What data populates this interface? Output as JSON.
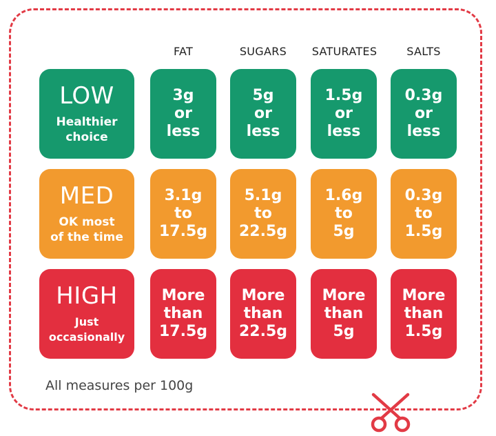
{
  "columns": [
    "FAT",
    "SUGARS",
    "SATURATES",
    "SALTS"
  ],
  "rows": [
    {
      "level": "LOW",
      "description": "Healthier choice",
      "desc_lines": [
        "Healthier",
        "choice"
      ],
      "color": "#16996d",
      "values": [
        [
          "3g",
          "or",
          "less"
        ],
        [
          "5g",
          "or",
          "less"
        ],
        [
          "1.5g",
          "or",
          "less"
        ],
        [
          "0.3g",
          "or",
          "less"
        ]
      ]
    },
    {
      "level": "MED",
      "description": "OK most of the time",
      "desc_lines": [
        "OK most",
        "of the time"
      ],
      "color": "#f29a2e",
      "values": [
        [
          "3.1g",
          "to",
          "17.5g"
        ],
        [
          "5.1g",
          "to",
          "22.5g"
        ],
        [
          "1.6g",
          "to",
          "5g"
        ],
        [
          "0.3g",
          "to",
          "1.5g"
        ]
      ]
    },
    {
      "level": "HIGH",
      "description": "Just occasionally",
      "desc_lines": [
        "Just",
        "occasionally"
      ],
      "color": "#e32f3f",
      "values": [
        [
          "More",
          "than",
          "17.5g"
        ],
        [
          "More",
          "than",
          "22.5g"
        ],
        [
          "More",
          "than",
          "5g"
        ],
        [
          "More",
          "than",
          "1.5g"
        ]
      ]
    }
  ],
  "footnote": "All measures per 100g",
  "icons": {
    "cut_line": "scissors-icon"
  },
  "colors": {
    "border": "#e23a45",
    "low": "#16996d",
    "med": "#f29a2e",
    "high": "#e32f3f"
  }
}
